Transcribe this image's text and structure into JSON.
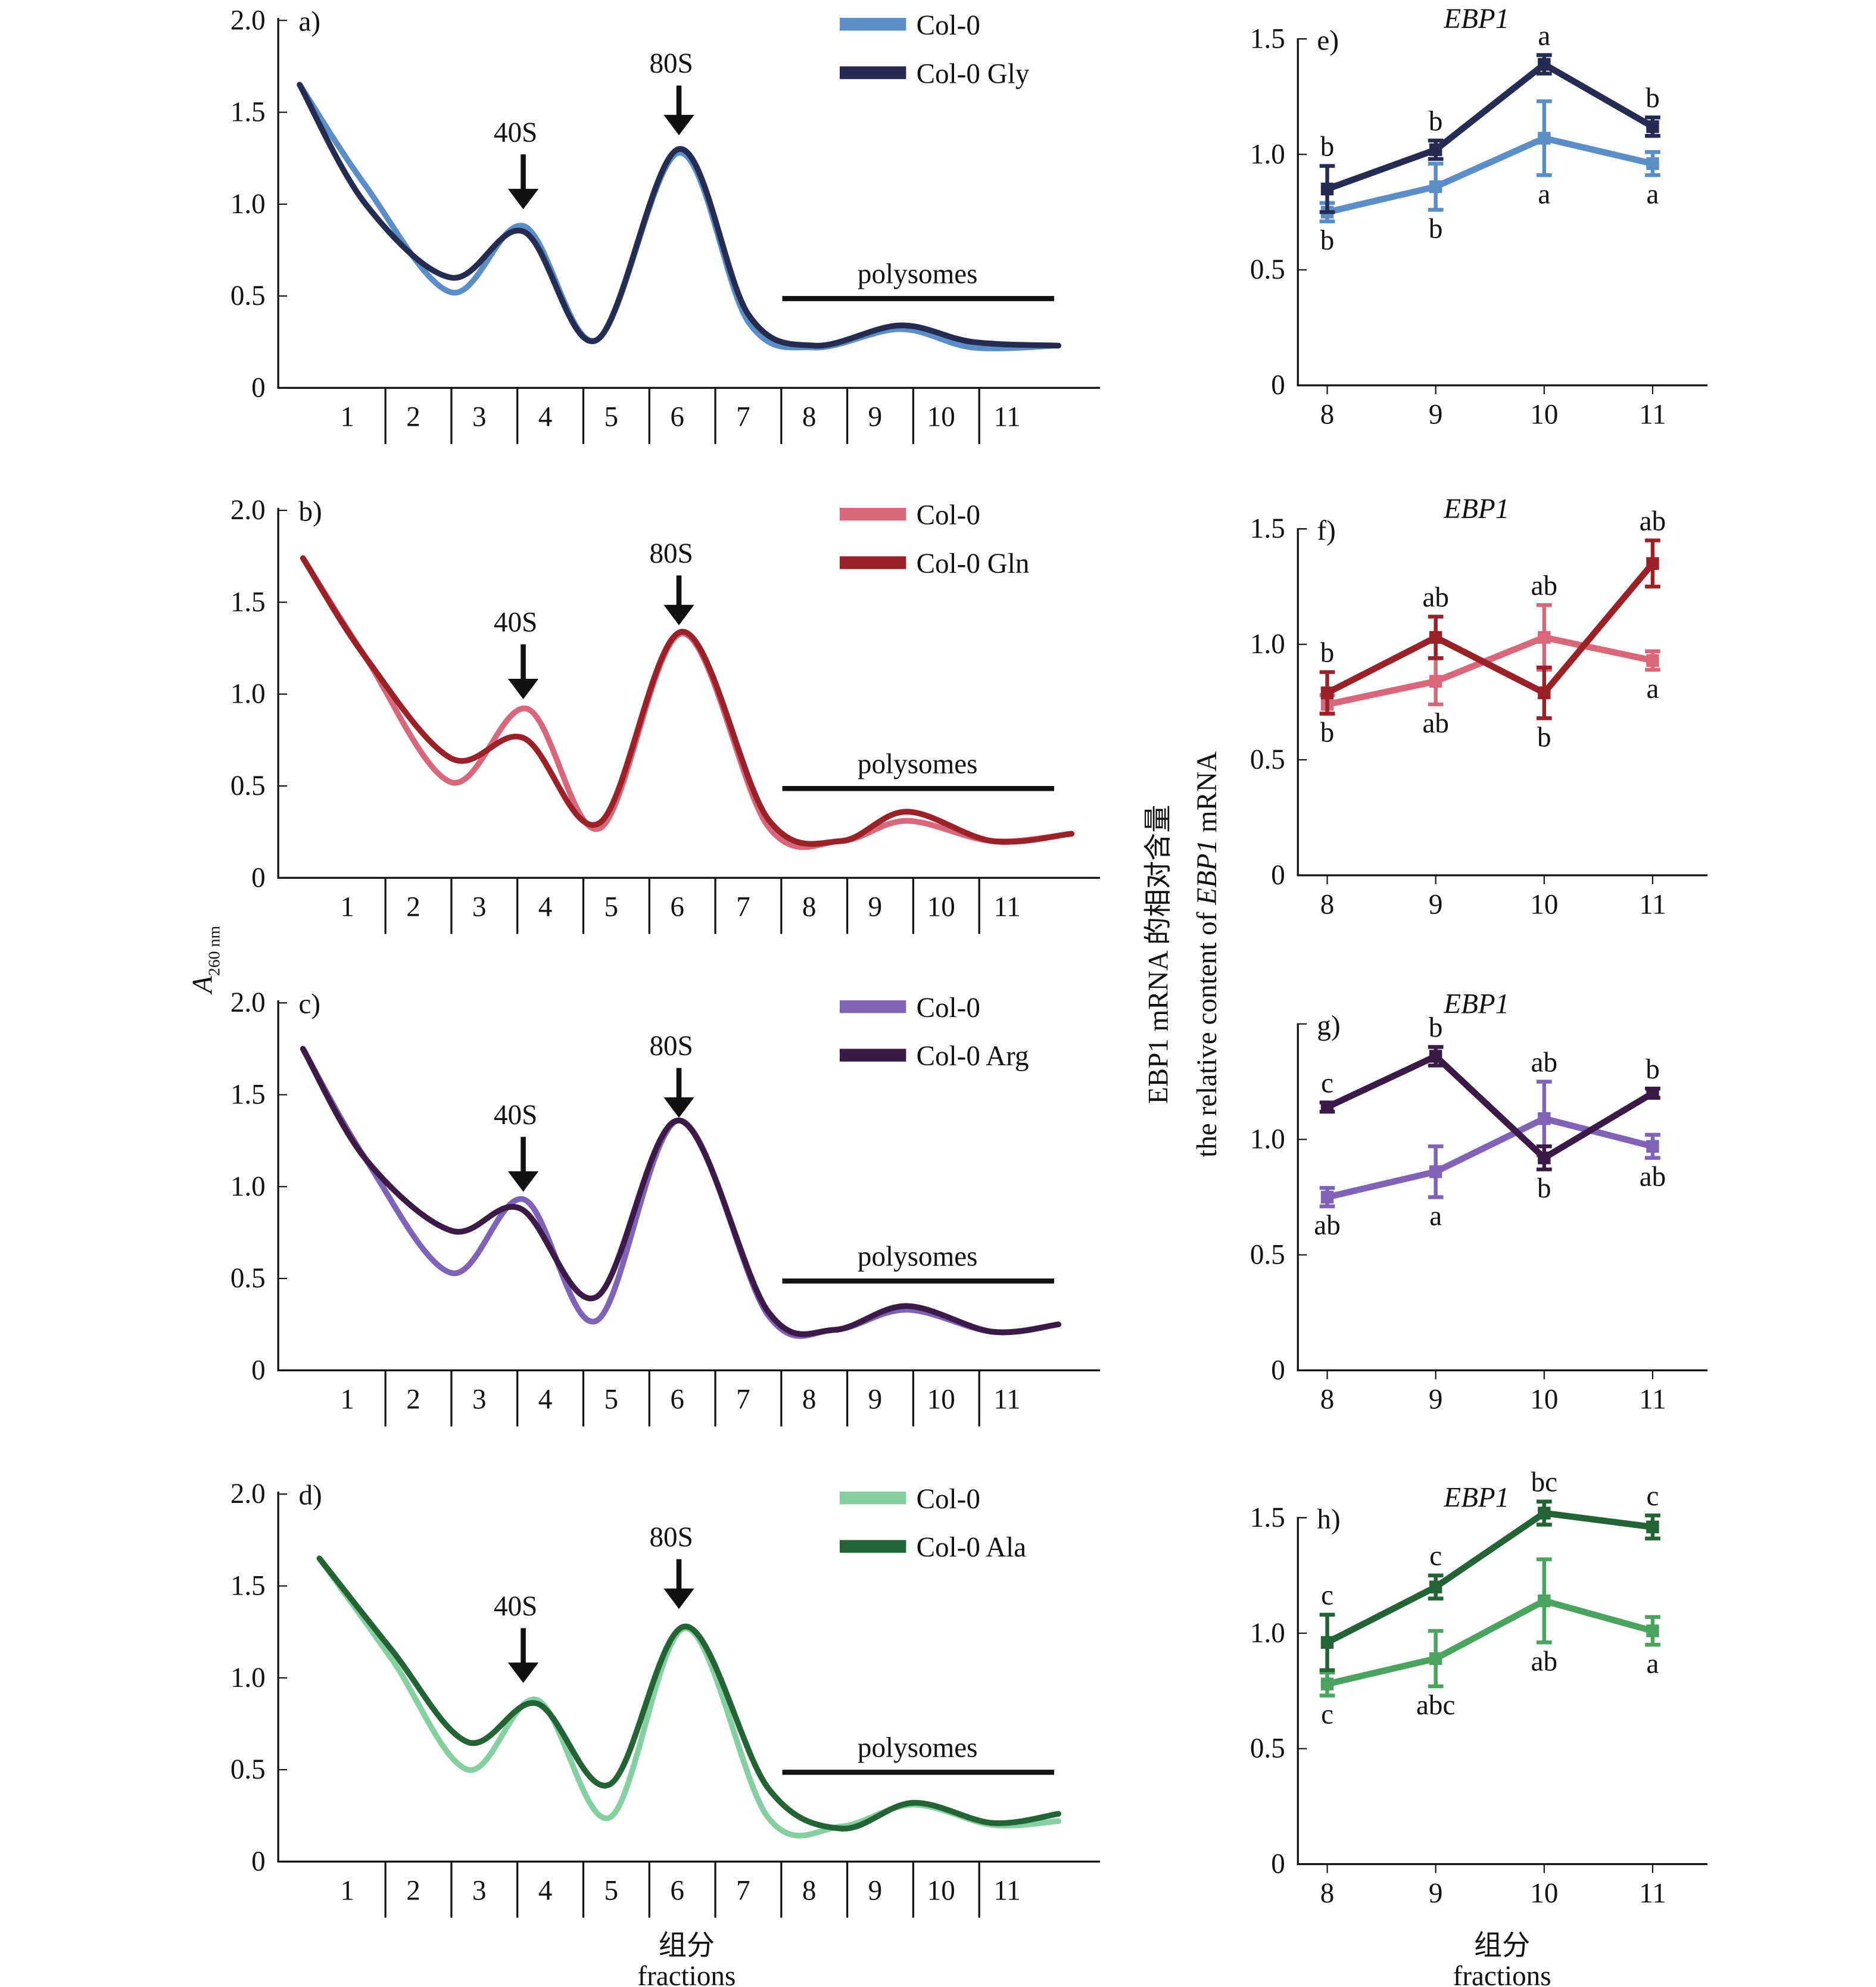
{
  "left_axis_label": {
    "main": "A",
    "sub": "260 nm"
  },
  "middle_axis_label": {
    "cn": "EBP1 mRNA 的相对含量",
    "en_prefix": "the relative content of ",
    "en_gene": "EBP1",
    "en_suffix": " mRNA"
  },
  "left_x_label": {
    "cn": "组分",
    "en": "fractions"
  },
  "right_x_label": {
    "cn": "组分",
    "en": "fractions"
  },
  "chart_data": [
    {
      "id": "a",
      "type": "line",
      "panel_label": "a)",
      "ylim": [
        0,
        2.0
      ],
      "yticks": [
        "0",
        "0.5",
        "1.0",
        "1.5",
        "2.0"
      ],
      "xticks": [
        "1",
        "2",
        "3",
        "4",
        "5",
        "6",
        "7",
        "8",
        "9",
        "10",
        "11"
      ],
      "annotations": {
        "peak1": "40S",
        "peak2": "80S",
        "polysomes": "polysomes"
      },
      "legend": "top-right",
      "series": [
        {
          "name": "Col-0",
          "color": "#5b8ec6",
          "points": [
            [
              0.2,
              1.65
            ],
            [
              1.2,
              1.1
            ],
            [
              2.5,
              0.52
            ],
            [
              3.6,
              0.88
            ],
            [
              4.7,
              0.26
            ],
            [
              5.95,
              1.28
            ],
            [
              7.0,
              0.36
            ],
            [
              8.0,
              0.22
            ],
            [
              9.3,
              0.32
            ],
            [
              10.4,
              0.22
            ],
            [
              11.7,
              0.23
            ]
          ]
        },
        {
          "name": "Col-0 Gly",
          "color": "#242c52",
          "points": [
            [
              0.2,
              1.65
            ],
            [
              1.2,
              1.0
            ],
            [
              2.5,
              0.6
            ],
            [
              3.6,
              0.85
            ],
            [
              4.7,
              0.26
            ],
            [
              5.95,
              1.3
            ],
            [
              7.0,
              0.4
            ],
            [
              8.0,
              0.23
            ],
            [
              9.3,
              0.34
            ],
            [
              10.4,
              0.25
            ],
            [
              11.7,
              0.23
            ]
          ]
        }
      ]
    },
    {
      "id": "b",
      "type": "line",
      "panel_label": "b)",
      "ylim": [
        0,
        2.0
      ],
      "yticks": [
        "0",
        "0.5",
        "1.0",
        "1.5",
        "2.0"
      ],
      "xticks": [
        "1",
        "2",
        "3",
        "4",
        "5",
        "6",
        "7",
        "8",
        "9",
        "10",
        "11"
      ],
      "annotations": {
        "peak1": "40S",
        "peak2": "80S",
        "polysomes": "polysomes"
      },
      "legend": "top-right",
      "series": [
        {
          "name": "Col-0",
          "color": "#d9677b",
          "points": [
            [
              0.25,
              1.74
            ],
            [
              1.2,
              1.2
            ],
            [
              2.5,
              0.52
            ],
            [
              3.65,
              0.92
            ],
            [
              4.75,
              0.27
            ],
            [
              6.0,
              1.33
            ],
            [
              7.3,
              0.28
            ],
            [
              8.4,
              0.2
            ],
            [
              9.4,
              0.31
            ],
            [
              10.7,
              0.2
            ],
            [
              11.9,
              0.24
            ]
          ]
        },
        {
          "name": "Col-0 Gln",
          "color": "#9b2128",
          "points": [
            [
              0.25,
              1.74
            ],
            [
              1.2,
              1.2
            ],
            [
              2.5,
              0.65
            ],
            [
              3.6,
              0.76
            ],
            [
              4.75,
              0.3
            ],
            [
              6.0,
              1.34
            ],
            [
              7.3,
              0.32
            ],
            [
              8.4,
              0.2
            ],
            [
              9.4,
              0.36
            ],
            [
              10.7,
              0.2
            ],
            [
              11.9,
              0.24
            ]
          ]
        }
      ]
    },
    {
      "id": "c",
      "type": "line",
      "panel_label": "c)",
      "ylim": [
        0,
        2.0
      ],
      "yticks": [
        "0",
        "0.5",
        "1.0",
        "1.5",
        "2.0"
      ],
      "xticks": [
        "1",
        "2",
        "3",
        "4",
        "5",
        "6",
        "7",
        "8",
        "9",
        "10",
        "11"
      ],
      "annotations": {
        "peak1": "40S",
        "peak2": "80S",
        "polysomes": "polysomes"
      },
      "legend": "top-right",
      "series": [
        {
          "name": "Col-0",
          "color": "#7f63b8",
          "points": [
            [
              0.25,
              1.75
            ],
            [
              1.2,
              1.15
            ],
            [
              2.5,
              0.53
            ],
            [
              3.6,
              0.93
            ],
            [
              4.7,
              0.27
            ],
            [
              5.95,
              1.36
            ],
            [
              7.3,
              0.3
            ],
            [
              8.3,
              0.22
            ],
            [
              9.4,
              0.33
            ],
            [
              10.7,
              0.21
            ],
            [
              11.7,
              0.25
            ]
          ]
        },
        {
          "name": "Col-0 Arg",
          "color": "#3b1a48",
          "points": [
            [
              0.25,
              1.75
            ],
            [
              1.2,
              1.15
            ],
            [
              2.5,
              0.76
            ],
            [
              3.55,
              0.88
            ],
            [
              4.7,
              0.4
            ],
            [
              5.95,
              1.36
            ],
            [
              7.3,
              0.32
            ],
            [
              8.3,
              0.22
            ],
            [
              9.4,
              0.35
            ],
            [
              10.7,
              0.21
            ],
            [
              11.7,
              0.25
            ]
          ]
        }
      ]
    },
    {
      "id": "d",
      "type": "line",
      "panel_label": "d)",
      "ylim": [
        0,
        2.0
      ],
      "yticks": [
        "0",
        "0.5",
        "1.0",
        "1.5",
        "2.0"
      ],
      "xticks": [
        "1",
        "2",
        "3",
        "4",
        "5",
        "6",
        "7",
        "8",
        "9",
        "10",
        "11"
      ],
      "annotations": {
        "peak1": "40S",
        "peak2": "80S",
        "polysomes": "polysomes"
      },
      "legend": "top-right",
      "series": [
        {
          "name": "Col-0",
          "color": "#86cfa0",
          "points": [
            [
              0.5,
              1.65
            ],
            [
              1.6,
              1.1
            ],
            [
              2.75,
              0.5
            ],
            [
              3.8,
              0.88
            ],
            [
              4.9,
              0.24
            ],
            [
              6.05,
              1.27
            ],
            [
              7.3,
              0.24
            ],
            [
              8.4,
              0.19
            ],
            [
              9.5,
              0.31
            ],
            [
              10.7,
              0.2
            ],
            [
              11.7,
              0.22
            ]
          ]
        },
        {
          "name": "Col-0 Ala",
          "color": "#236336",
          "points": [
            [
              0.5,
              1.65
            ],
            [
              1.6,
              1.15
            ],
            [
              2.75,
              0.65
            ],
            [
              3.8,
              0.86
            ],
            [
              4.9,
              0.42
            ],
            [
              6.05,
              1.28
            ],
            [
              7.3,
              0.4
            ],
            [
              8.4,
              0.18
            ],
            [
              9.5,
              0.32
            ],
            [
              10.7,
              0.21
            ],
            [
              11.7,
              0.26
            ]
          ]
        }
      ]
    },
    {
      "id": "e",
      "type": "line",
      "panel_label": "e)",
      "title": "EBP1",
      "ylim": [
        0,
        1.5
      ],
      "yticks": [
        "0",
        "0.5",
        "1.0",
        "1.5"
      ],
      "x": [
        "8",
        "9",
        "10",
        "11"
      ],
      "series": [
        {
          "color": "#5b8ec6",
          "values": [
            0.75,
            0.86,
            1.07,
            0.96
          ],
          "errors": [
            0.04,
            0.1,
            0.16,
            0.05
          ],
          "letters": [
            "b",
            "b",
            "a",
            "a"
          ],
          "letter_side": [
            "below",
            "below",
            "below",
            "below"
          ]
        },
        {
          "color": "#242c52",
          "values": [
            0.85,
            1.02,
            1.39,
            1.12
          ],
          "errors": [
            0.1,
            0.04,
            0.04,
            0.04
          ],
          "letters": [
            "b",
            "b",
            "a",
            "b"
          ],
          "letter_side": [
            "above",
            "above",
            "above",
            "above"
          ]
        }
      ]
    },
    {
      "id": "f",
      "type": "line",
      "panel_label": "f)",
      "title": "EBP1",
      "ylim": [
        0,
        1.5
      ],
      "yticks": [
        "0",
        "0.5",
        "1.0",
        "1.5"
      ],
      "x": [
        "8",
        "9",
        "10",
        "11"
      ],
      "series": [
        {
          "color": "#d9677b",
          "values": [
            0.74,
            0.84,
            1.03,
            0.93
          ],
          "errors": [
            0.04,
            0.1,
            0.14,
            0.04
          ],
          "letters": [
            "b",
            "ab",
            "ab",
            "a"
          ],
          "letter_side": [
            "below",
            "below",
            "above",
            "below"
          ]
        },
        {
          "color": "#9b2128",
          "values": [
            0.79,
            1.03,
            0.79,
            1.35
          ],
          "errors": [
            0.09,
            0.09,
            0.11,
            0.1
          ],
          "letters": [
            "b",
            "ab",
            "b",
            "ab"
          ],
          "letter_side": [
            "above",
            "above",
            "below",
            "above"
          ]
        }
      ]
    },
    {
      "id": "g",
      "type": "line",
      "panel_label": "g)",
      "title": "EBP1",
      "ylim": [
        0,
        1.5
      ],
      "yticks": [
        "0",
        "0.5",
        "1.0"
      ],
      "x": [
        "8",
        "9",
        "10",
        "11"
      ],
      "series": [
        {
          "color": "#7f63b8",
          "values": [
            0.75,
            0.86,
            1.09,
            0.97
          ],
          "errors": [
            0.04,
            0.11,
            0.16,
            0.05
          ],
          "letters": [
            "ab",
            "a",
            "ab",
            "ab"
          ],
          "letter_side": [
            "below",
            "below",
            "above",
            "below"
          ]
        },
        {
          "color": "#3b1a48",
          "values": [
            1.14,
            1.36,
            0.92,
            1.2
          ],
          "errors": [
            0.02,
            0.04,
            0.05,
            0.02
          ],
          "letters": [
            "c",
            "b",
            "b",
            "b"
          ],
          "letter_side": [
            "above",
            "above",
            "below",
            "above"
          ]
        }
      ]
    },
    {
      "id": "h",
      "type": "line",
      "panel_label": "h)",
      "title": "EBP1",
      "ylim": [
        0,
        1.5
      ],
      "yticks": [
        "0",
        "0.5",
        "1.0",
        "1.5"
      ],
      "x": [
        "8",
        "9",
        "10",
        "11"
      ],
      "series": [
        {
          "color": "#4aa35e",
          "values": [
            0.78,
            0.89,
            1.14,
            1.01
          ],
          "errors": [
            0.05,
            0.12,
            0.18,
            0.06
          ],
          "letters": [
            "c",
            "abc",
            "ab",
            "a"
          ],
          "letter_side": [
            "below",
            "below",
            "below",
            "below"
          ]
        },
        {
          "color": "#236336",
          "values": [
            0.96,
            1.2,
            1.52,
            1.46
          ],
          "errors": [
            0.12,
            0.05,
            0.05,
            0.05
          ],
          "letters": [
            "c",
            "c",
            "bc",
            "c"
          ],
          "letter_side": [
            "above",
            "above",
            "above",
            "above"
          ]
        }
      ]
    }
  ]
}
